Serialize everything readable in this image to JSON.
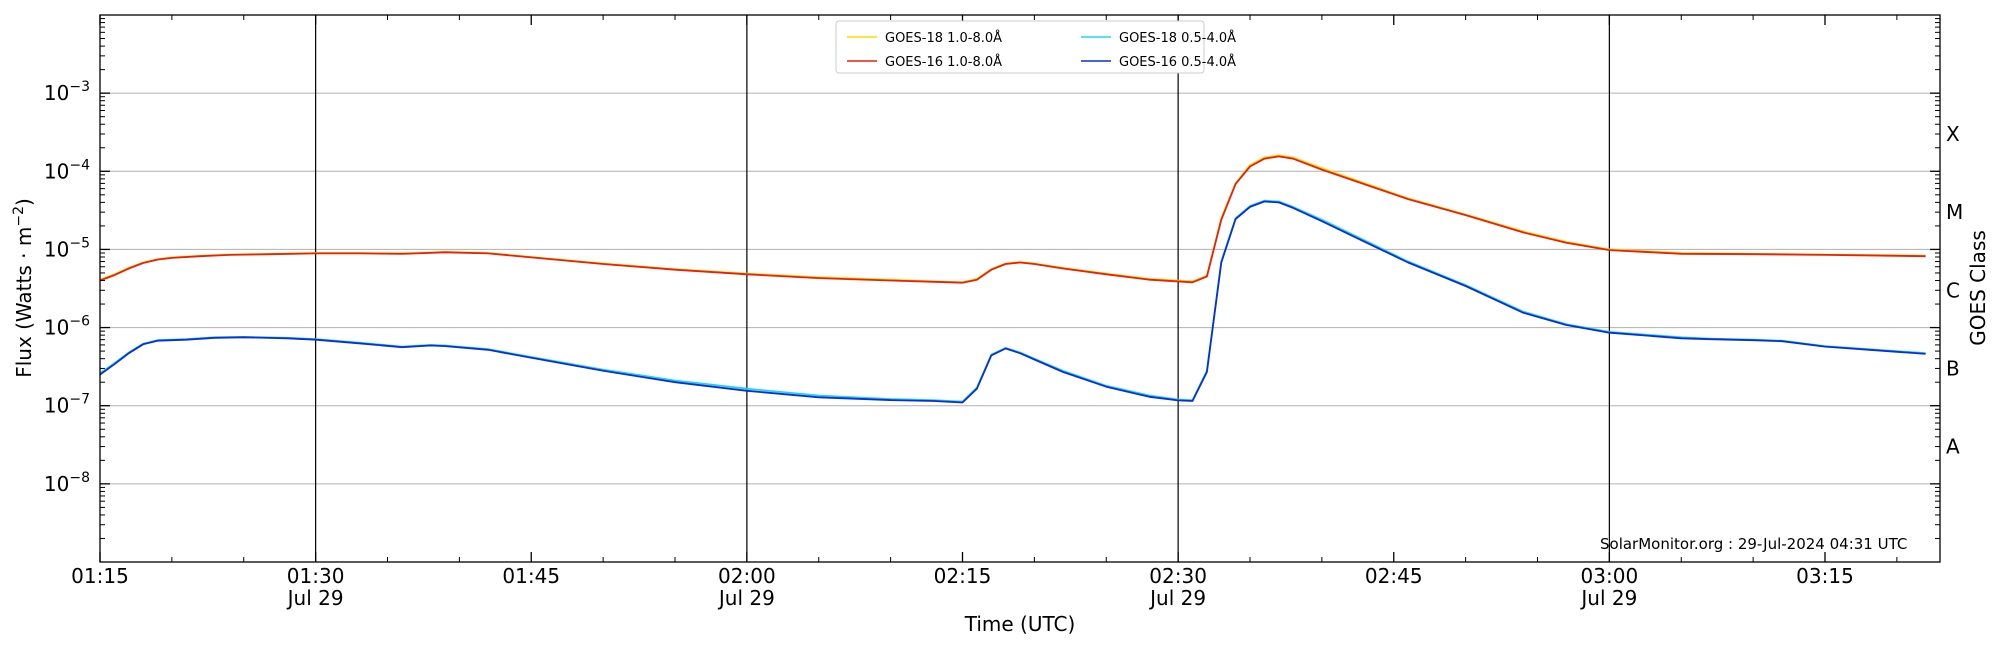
{
  "chart_data": {
    "type": "line",
    "xlabel": "Time (UTC)",
    "ylabel": "Flux (Watts · m",
    "ylabel_sup": "−2",
    "ylabel_close": ")",
    "right_label": "GOES Class",
    "credit": "SolarMonitor.org : 29-Jul-2024 04:31 UTC",
    "x_range": [
      "01:15",
      "03:23"
    ],
    "y_range": [
      1e-09,
      0.01
    ],
    "y_scale": "log",
    "grid": "horizontal",
    "legend_position": "top-center",
    "x_ticks": [
      {
        "time": "01:15",
        "date": ""
      },
      {
        "time": "01:30",
        "date": "Jul 29"
      },
      {
        "time": "01:45",
        "date": ""
      },
      {
        "time": "02:00",
        "date": "Jul 29"
      },
      {
        "time": "02:15",
        "date": ""
      },
      {
        "time": "02:30",
        "date": "Jul 29"
      },
      {
        "time": "02:45",
        "date": ""
      },
      {
        "time": "03:00",
        "date": "Jul 29"
      },
      {
        "time": "03:15",
        "date": ""
      }
    ],
    "y_ticks": [
      {
        "base": "10",
        "exp": "−8",
        "value": 1e-08
      },
      {
        "base": "10",
        "exp": "−7",
        "value": 1e-07
      },
      {
        "base": "10",
        "exp": "−6",
        "value": 1e-06
      },
      {
        "base": "10",
        "exp": "−5",
        "value": 1e-05
      },
      {
        "base": "10",
        "exp": "−4",
        "value": 0.0001
      },
      {
        "base": "10",
        "exp": "−3",
        "value": 0.001
      }
    ],
    "goes_classes": [
      {
        "label": "A",
        "value": 3e-08
      },
      {
        "label": "B",
        "value": 3e-07
      },
      {
        "label": "C",
        "value": 3e-06
      },
      {
        "label": "M",
        "value": 3e-05
      },
      {
        "label": "X",
        "value": 0.0003
      }
    ],
    "vertical_lines": [
      "01:30",
      "02:00",
      "02:30",
      "03:00"
    ],
    "series": [
      {
        "name": "GOES-18 1.0-8.0Å",
        "color": "#ffd700",
        "points": [
          [
            "01:15",
            4.1e-06
          ],
          [
            "01:16",
            4.8e-06
          ],
          [
            "01:17",
            5.8e-06
          ],
          [
            "01:18",
            6.8e-06
          ],
          [
            "01:19",
            7.5e-06
          ],
          [
            "01:20",
            7.9e-06
          ],
          [
            "01:22",
            8.3e-06
          ],
          [
            "01:24",
            8.6e-06
          ],
          [
            "01:27",
            8.8e-06
          ],
          [
            "01:30",
            9e-06
          ],
          [
            "01:33",
            9e-06
          ],
          [
            "01:36",
            8.9e-06
          ],
          [
            "01:37",
            9e-06
          ],
          [
            "01:39",
            9.3e-06
          ],
          [
            "01:42",
            9e-06
          ],
          [
            "01:45",
            8e-06
          ],
          [
            "01:50",
            6.6e-06
          ],
          [
            "01:55",
            5.6e-06
          ],
          [
            "02:00",
            4.9e-06
          ],
          [
            "02:05",
            4.4e-06
          ],
          [
            "02:10",
            4.1e-06
          ],
          [
            "02:13",
            3.9e-06
          ],
          [
            "02:15",
            3.8e-06
          ],
          [
            "02:16",
            4.2e-06
          ],
          [
            "02:17",
            5.6e-06
          ],
          [
            "02:18",
            6.6e-06
          ],
          [
            "02:19",
            6.9e-06
          ],
          [
            "02:20",
            6.6e-06
          ],
          [
            "02:22",
            5.8e-06
          ],
          [
            "02:25",
            4.9e-06
          ],
          [
            "02:28",
            4.2e-06
          ],
          [
            "02:31",
            3.9e-06
          ],
          [
            "02:32",
            4.6e-06
          ],
          [
            "02:33",
            2.5e-05
          ],
          [
            "02:34",
            7e-05
          ],
          [
            "02:35",
            0.00012
          ],
          [
            "02:36",
            0.00015
          ],
          [
            "02:37",
            0.00016
          ],
          [
            "02:38",
            0.00015
          ],
          [
            "02:40",
            0.00011
          ],
          [
            "02:43",
            7e-05
          ],
          [
            "02:46",
            4.5e-05
          ],
          [
            "02:50",
            2.8e-05
          ],
          [
            "02:54",
            1.7e-05
          ],
          [
            "02:57",
            1.25e-05
          ],
          [
            "03:00",
            1e-05
          ],
          [
            "03:05",
            9e-06
          ],
          [
            "03:10",
            8.8e-06
          ],
          [
            "03:15",
            8.6e-06
          ],
          [
            "03:20",
            8.4e-06
          ],
          [
            "03:22",
            8.3e-06
          ]
        ]
      },
      {
        "name": "GOES-16 1.0-8.0Å",
        "color": "#e8200c",
        "points": [
          [
            "01:15",
            4e-06
          ],
          [
            "01:16",
            4.7e-06
          ],
          [
            "01:17",
            5.7e-06
          ],
          [
            "01:18",
            6.7e-06
          ],
          [
            "01:19",
            7.4e-06
          ],
          [
            "01:20",
            7.8e-06
          ],
          [
            "01:22",
            8.2e-06
          ],
          [
            "01:24",
            8.5e-06
          ],
          [
            "01:27",
            8.7e-06
          ],
          [
            "01:30",
            8.9e-06
          ],
          [
            "01:33",
            8.9e-06
          ],
          [
            "01:36",
            8.8e-06
          ],
          [
            "01:37",
            8.9e-06
          ],
          [
            "01:39",
            9.2e-06
          ],
          [
            "01:42",
            8.9e-06
          ],
          [
            "01:45",
            7.9e-06
          ],
          [
            "01:50",
            6.5e-06
          ],
          [
            "01:55",
            5.5e-06
          ],
          [
            "02:00",
            4.8e-06
          ],
          [
            "02:05",
            4.3e-06
          ],
          [
            "02:10",
            4e-06
          ],
          [
            "02:13",
            3.85e-06
          ],
          [
            "02:15",
            3.75e-06
          ],
          [
            "02:16",
            4.1e-06
          ],
          [
            "02:17",
            5.5e-06
          ],
          [
            "02:18",
            6.5e-06
          ],
          [
            "02:19",
            6.8e-06
          ],
          [
            "02:20",
            6.5e-06
          ],
          [
            "02:22",
            5.7e-06
          ],
          [
            "02:25",
            4.8e-06
          ],
          [
            "02:28",
            4.1e-06
          ],
          [
            "02:31",
            3.8e-06
          ],
          [
            "02:32",
            4.5e-06
          ],
          [
            "02:33",
            2.4e-05
          ],
          [
            "02:34",
            6.9e-05
          ],
          [
            "02:35",
            0.000115
          ],
          [
            "02:36",
            0.000145
          ],
          [
            "02:37",
            0.000155
          ],
          [
            "02:38",
            0.000145
          ],
          [
            "02:40",
            0.000105
          ],
          [
            "02:43",
            6.8e-05
          ],
          [
            "02:46",
            4.4e-05
          ],
          [
            "02:50",
            2.75e-05
          ],
          [
            "02:54",
            1.65e-05
          ],
          [
            "02:57",
            1.22e-05
          ],
          [
            "03:00",
            9.8e-06
          ],
          [
            "03:05",
            8.8e-06
          ],
          [
            "03:10",
            8.7e-06
          ],
          [
            "03:15",
            8.5e-06
          ],
          [
            "03:20",
            8.3e-06
          ],
          [
            "03:22",
            8.2e-06
          ]
        ]
      },
      {
        "name": "GOES-18 0.5-4.0Å",
        "color": "#22d3ee",
        "points": [
          [
            "01:15",
            2.6e-07
          ],
          [
            "01:16",
            3.5e-07
          ],
          [
            "01:17",
            4.8e-07
          ],
          [
            "01:18",
            6.2e-07
          ],
          [
            "01:19",
            6.9e-07
          ],
          [
            "01:21",
            7.1e-07
          ],
          [
            "01:23",
            7.5e-07
          ],
          [
            "01:25",
            7.6e-07
          ],
          [
            "01:28",
            7.4e-07
          ],
          [
            "01:30",
            7.1e-07
          ],
          [
            "01:33",
            6.4e-07
          ],
          [
            "01:36",
            5.7e-07
          ],
          [
            "01:38",
            6e-07
          ],
          [
            "01:39",
            5.9e-07
          ],
          [
            "01:42",
            5.3e-07
          ],
          [
            "01:45",
            4.2e-07
          ],
          [
            "01:50",
            2.9e-07
          ],
          [
            "01:55",
            2.1e-07
          ],
          [
            "02:00",
            1.65e-07
          ],
          [
            "02:05",
            1.35e-07
          ],
          [
            "02:10",
            1.22e-07
          ],
          [
            "02:13",
            1.18e-07
          ],
          [
            "02:15",
            1.13e-07
          ],
          [
            "02:16",
            1.7e-07
          ],
          [
            "02:17",
            4.5e-07
          ],
          [
            "02:18",
            5.5e-07
          ],
          [
            "02:19",
            4.8e-07
          ],
          [
            "02:20",
            4e-07
          ],
          [
            "02:22",
            2.8e-07
          ],
          [
            "02:25",
            1.8e-07
          ],
          [
            "02:28",
            1.35e-07
          ],
          [
            "02:30",
            1.2e-07
          ],
          [
            "02:31",
            1.18e-07
          ],
          [
            "02:32",
            2.8e-07
          ],
          [
            "02:33",
            7e-06
          ],
          [
            "02:34",
            2.5e-05
          ],
          [
            "02:35",
            3.6e-05
          ],
          [
            "02:36",
            4.2e-05
          ],
          [
            "02:37",
            4.1e-05
          ],
          [
            "02:38",
            3.5e-05
          ],
          [
            "02:40",
            2.4e-05
          ],
          [
            "02:43",
            1.3e-05
          ],
          [
            "02:46",
            7e-06
          ],
          [
            "02:50",
            3.5e-06
          ],
          [
            "02:54",
            1.6e-06
          ],
          [
            "02:57",
            1.1e-06
          ],
          [
            "03:00",
            8.8e-07
          ],
          [
            "03:05",
            7.5e-07
          ],
          [
            "03:07",
            7.2e-07
          ],
          [
            "03:10",
            7e-07
          ],
          [
            "03:12",
            6.8e-07
          ],
          [
            "03:15",
            5.8e-07
          ],
          [
            "03:20",
            5e-07
          ],
          [
            "03:22",
            4.7e-07
          ]
        ]
      },
      {
        "name": "GOES-16 0.5-4.0Å",
        "color": "#0a2fd6",
        "points": [
          [
            "01:15",
            2.5e-07
          ],
          [
            "01:16",
            3.4e-07
          ],
          [
            "01:17",
            4.7e-07
          ],
          [
            "01:18",
            6.1e-07
          ],
          [
            "01:19",
            6.8e-07
          ],
          [
            "01:21",
            7e-07
          ],
          [
            "01:23",
            7.4e-07
          ],
          [
            "01:25",
            7.5e-07
          ],
          [
            "01:28",
            7.3e-07
          ],
          [
            "01:30",
            7e-07
          ],
          [
            "01:33",
            6.3e-07
          ],
          [
            "01:36",
            5.6e-07
          ],
          [
            "01:38",
            5.9e-07
          ],
          [
            "01:39",
            5.8e-07
          ],
          [
            "01:42",
            5.2e-07
          ],
          [
            "01:45",
            4.1e-07
          ],
          [
            "01:50",
            2.8e-07
          ],
          [
            "01:55",
            2e-07
          ],
          [
            "02:00",
            1.55e-07
          ],
          [
            "02:05",
            1.28e-07
          ],
          [
            "02:10",
            1.18e-07
          ],
          [
            "02:13",
            1.15e-07
          ],
          [
            "02:15",
            1.1e-07
          ],
          [
            "02:16",
            1.65e-07
          ],
          [
            "02:17",
            4.4e-07
          ],
          [
            "02:18",
            5.4e-07
          ],
          [
            "02:19",
            4.7e-07
          ],
          [
            "02:20",
            3.9e-07
          ],
          [
            "02:22",
            2.7e-07
          ],
          [
            "02:25",
            1.75e-07
          ],
          [
            "02:28",
            1.3e-07
          ],
          [
            "02:30",
            1.17e-07
          ],
          [
            "02:31",
            1.15e-07
          ],
          [
            "02:32",
            2.7e-07
          ],
          [
            "02:33",
            6.8e-06
          ],
          [
            "02:34",
            2.45e-05
          ],
          [
            "02:35",
            3.5e-05
          ],
          [
            "02:36",
            4.1e-05
          ],
          [
            "02:37",
            4e-05
          ],
          [
            "02:38",
            3.4e-05
          ],
          [
            "02:40",
            2.3e-05
          ],
          [
            "02:43",
            1.25e-05
          ],
          [
            "02:46",
            6.8e-06
          ],
          [
            "02:50",
            3.4e-06
          ],
          [
            "02:54",
            1.55e-06
          ],
          [
            "02:57",
            1.08e-06
          ],
          [
            "03:00",
            8.6e-07
          ],
          [
            "03:05",
            7.3e-07
          ],
          [
            "03:07",
            7.1e-07
          ],
          [
            "03:10",
            6.9e-07
          ],
          [
            "03:12",
            6.7e-07
          ],
          [
            "03:15",
            5.7e-07
          ],
          [
            "03:20",
            4.9e-07
          ],
          [
            "03:22",
            4.6e-07
          ]
        ]
      }
    ]
  }
}
